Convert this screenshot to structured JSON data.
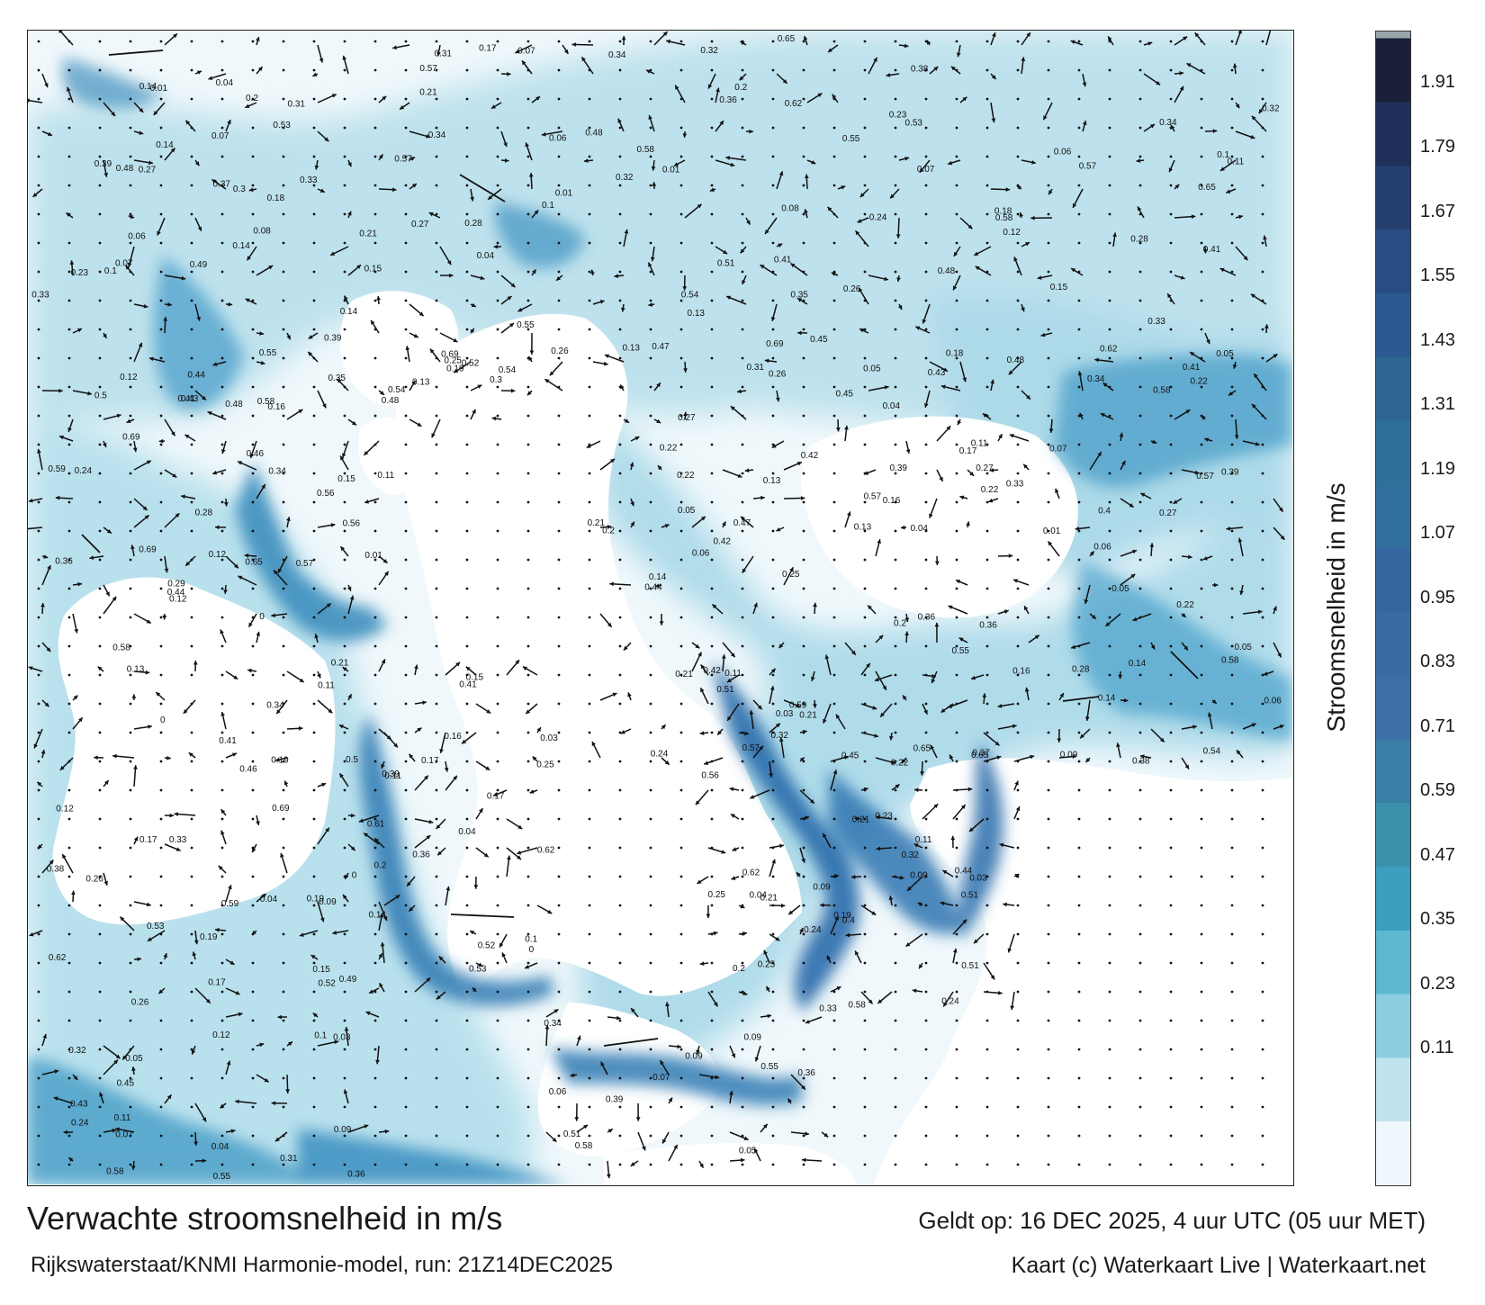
{
  "title": "Verwachte stroomsnelheid in m/s",
  "subtitle": "Rijkswaterstaat/KNMI Harmonie-model, run: 21Z14DEC2025",
  "valid_time": "Geldt op: 16 DEC 2025, 4 uur UTC (05 uur MET)",
  "credit": "Kaart (c) Waterkaart Live | Waterkaart.net",
  "colorbar": {
    "label": "Stroomsnelheid in m/s",
    "ticks": [
      "1.91",
      "1.79",
      "1.67",
      "1.55",
      "1.43",
      "1.31",
      "1.19",
      "1.07",
      "0.95",
      "0.83",
      "0.71",
      "0.59",
      "0.47",
      "0.35",
      "0.23",
      "0.11"
    ],
    "colors": [
      "#1a1f3a",
      "#20305a",
      "#243f6f",
      "#284d82",
      "#2b5a90",
      "#2e6593",
      "#2f6f98",
      "#316f9c",
      "#34679f",
      "#3a6ba3",
      "#3d6fa8",
      "#3a7fa5",
      "#3991ab",
      "#3b9fbd",
      "#5cb8cf",
      "#8ccde0",
      "#bfe4ee",
      "#eef7fb"
    ],
    "max_color": "#9aa5ad"
  },
  "map": {
    "land_color": "#ffffff",
    "water_dark": "#1f5f9e",
    "water_mid": "#3a98bf",
    "water_light": "#9cd2e4",
    "sea_bg": "#f3f9fc",
    "arrow_color": "#111111",
    "labels": [
      {
        "t": "0.12",
        "v": 0.12
      },
      {
        "t": "0.19",
        "v": 0.19
      },
      {
        "t": "0.15",
        "v": 0.15
      },
      {
        "t": "0.13",
        "v": 0.13
      },
      {
        "t": "0.2",
        "v": 0.2
      },
      {
        "t": "0.08",
        "v": 0.08
      },
      {
        "t": "0.05",
        "v": 0.05
      },
      {
        "t": "0.16",
        "v": 0.16
      },
      {
        "t": "0.22",
        "v": 0.22
      },
      {
        "t": "0.17",
        "v": 0.17
      },
      {
        "t": "0.26",
        "v": 0.26
      },
      {
        "t": "0.31",
        "v": 0.31
      },
      {
        "t": "0.14",
        "v": 0.14
      },
      {
        "t": "0.11",
        "v": 0.11
      },
      {
        "t": "0.06",
        "v": 0.06
      },
      {
        "t": "0.1",
        "v": 0.1
      },
      {
        "t": "0.59",
        "v": 0.59
      },
      {
        "t": "0.61",
        "v": 0.61
      },
      {
        "t": "0.62",
        "v": 0.62
      },
      {
        "t": "0.69",
        "v": 0.69
      },
      {
        "t": "0.45",
        "v": 0.45
      },
      {
        "t": "0.55",
        "v": 0.55
      },
      {
        "t": "0.53",
        "v": 0.53
      },
      {
        "t": "0.48",
        "v": 0.48
      },
      {
        "t": "0.54",
        "v": 0.54
      },
      {
        "t": "0.65",
        "v": 0.65
      },
      {
        "t": "0.57",
        "v": 0.57
      },
      {
        "t": "0.52",
        "v": 0.52
      },
      {
        "t": "0.49",
        "v": 0.49
      },
      {
        "t": "0.47",
        "v": 0.47
      },
      {
        "t": "0.46",
        "v": 0.46
      },
      {
        "t": "0.42",
        "v": 0.42
      },
      {
        "t": "0.39",
        "v": 0.39
      },
      {
        "t": "0.35",
        "v": 0.35
      },
      {
        "t": "0.33",
        "v": 0.33
      },
      {
        "t": "0.3",
        "v": 0.3
      },
      {
        "t": "0.27",
        "v": 0.27
      },
      {
        "t": "0.25",
        "v": 0.25
      },
      {
        "t": "0.24",
        "v": 0.24
      },
      {
        "t": "0.23",
        "v": 0.23
      },
      {
        "t": "0.21",
        "v": 0.21
      },
      {
        "t": "0.18",
        "v": 0.18
      },
      {
        "t": "0.09",
        "v": 0.09
      },
      {
        "t": "0.07",
        "v": 0.07
      },
      {
        "t": "0.04",
        "v": 0.04
      },
      {
        "t": "0.03",
        "v": 0.03
      },
      {
        "t": "0.02",
        "v": 0.02
      },
      {
        "t": "0.01",
        "v": 0.01
      },
      {
        "t": "0.5",
        "v": 0.5
      },
      {
        "t": "0.51",
        "v": 0.51
      },
      {
        "t": "0.56",
        "v": 0.56
      },
      {
        "t": "0.58",
        "v": 0.58
      },
      {
        "t": "0.44",
        "v": 0.44
      },
      {
        "t": "0.43",
        "v": 0.43
      },
      {
        "t": "0.41",
        "v": 0.41
      },
      {
        "t": "0.4",
        "v": 0.4
      },
      {
        "t": "0.38",
        "v": 0.38
      },
      {
        "t": "0.37",
        "v": 0.37
      },
      {
        "t": "0.36",
        "v": 0.36
      },
      {
        "t": "0.34",
        "v": 0.34
      },
      {
        "t": "0.32",
        "v": 0.32
      },
      {
        "t": "0.29",
        "v": 0.29
      },
      {
        "t": "0.28",
        "v": 0.28
      },
      {
        "t": "0",
        "v": 0
      }
    ]
  }
}
